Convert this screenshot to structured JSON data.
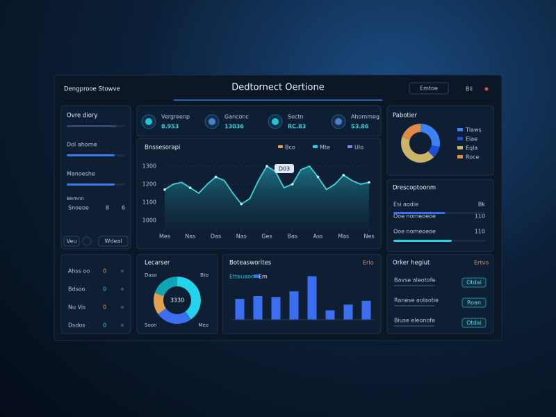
{
  "header": {
    "brand": "Dengprooe Stowve",
    "title": "Dedtornect Oertione",
    "actions": [
      "Emtoe",
      "Bli"
    ]
  },
  "sidebar": {
    "bars": [
      {
        "label": "Ovre diory",
        "value": 85
      },
      {
        "label": "Dol ahorne",
        "value": 82
      },
      {
        "label": "Manoeshe",
        "value": 82
      }
    ],
    "xlim": [
      0,
      100
    ],
    "note": "Bemnn",
    "row": [
      "Snoeoe",
      "8",
      "6"
    ],
    "buttons": [
      "Veu",
      "Wdeal"
    ]
  },
  "kpis": [
    {
      "label": "Vergreenp",
      "value": "8.953"
    },
    {
      "label": "Ganconc",
      "value": "13036"
    },
    {
      "label": "Sectn",
      "value": "RC.83"
    },
    {
      "label": "Ahommeg",
      "value": "S3.86"
    }
  ],
  "line_chart": {
    "type": "line",
    "title": "Bnssesorapi",
    "legend": [
      {
        "name": "Bco",
        "color": "#e0a050"
      },
      {
        "name": "Mte",
        "color": "#22d3ee"
      },
      {
        "name": "Ulo",
        "color": "#8b7cf0"
      }
    ],
    "x": [
      0,
      1,
      2,
      3,
      4,
      5,
      6,
      7,
      8,
      9,
      10,
      11,
      12,
      13,
      14,
      15,
      16,
      17,
      18,
      19,
      20,
      21,
      22,
      23,
      24
    ],
    "values": [
      1170,
      1200,
      1210,
      1180,
      1150,
      1200,
      1240,
      1220,
      1150,
      1090,
      1120,
      1220,
      1300,
      1270,
      1180,
      1200,
      1280,
      1300,
      1240,
      1170,
      1200,
      1250,
      1220,
      1200,
      1210
    ],
    "color": "#3fd6e0",
    "xlim": [
      0,
      24
    ],
    "ylim": [
      950,
      1350
    ],
    "yticks": [
      1000,
      1100,
      1200,
      1300
    ],
    "xticks": [
      {
        "value": 0,
        "label": "Mes"
      },
      {
        "value": 3,
        "label": "Nas"
      },
      {
        "value": 6,
        "label": "Das"
      },
      {
        "value": 9,
        "label": "Nas"
      },
      {
        "value": 12,
        "label": "Ges"
      },
      {
        "value": 15,
        "label": "Bas"
      },
      {
        "value": 18,
        "label": "Ass"
      },
      {
        "value": 21,
        "label": "Mas"
      },
      {
        "value": 24,
        "label": "Nes"
      }
    ],
    "annotation": "D03"
  },
  "donut_top": {
    "type": "pie",
    "title": "Pabotier",
    "series": [
      {
        "name": "Tlaws",
        "color": "#3b82f6",
        "value": 28
      },
      {
        "name": "Eiae",
        "color": "#1e4fd0",
        "value": 10
      },
      {
        "name": "Eqla",
        "color": "#c9b46a",
        "value": 42
      },
      {
        "name": "Roce",
        "color": "#e08a4a",
        "value": 20
      }
    ]
  },
  "progress": {
    "title": "Drescoptoonm",
    "rows": [
      {
        "label": "Esi aodie",
        "end": "Bk"
      },
      {
        "label": "Ooe nomeoeoe",
        "end": "110"
      },
      {
        "label": "Ooe nomeoeoe",
        "end": "110"
      }
    ],
    "values": [
      62,
      70
    ],
    "colors": [
      "#3b6ef0",
      "#22d3ee"
    ],
    "xlim": [
      0,
      100
    ]
  },
  "table": {
    "rows": [
      [
        "Ahss oo",
        "0"
      ],
      [
        "Bdsoo",
        "0"
      ],
      [
        "Nu Vis",
        "0"
      ],
      [
        "Dsdos",
        "0"
      ]
    ]
  },
  "donut_small": {
    "type": "pie",
    "title": "Lecarser",
    "center": "3330",
    "corners": [
      "Daso",
      "Bto",
      "Soon",
      "Meo"
    ],
    "series": [
      {
        "color": "#22d3ee",
        "value": 40
      },
      {
        "color": "#3b6ef0",
        "value": 25
      },
      {
        "color": "#e0a050",
        "value": 15
      },
      {
        "color": "#0ea5b7",
        "value": 20
      }
    ]
  },
  "bar_chart": {
    "type": "bar",
    "title": "Boteasworites",
    "legend": [
      "Etteuaon",
      "Em"
    ],
    "link": "Erlo",
    "values": [
      22,
      25,
      24,
      30,
      46,
      10,
      16,
      20
    ],
    "color": "#3b6ef0",
    "ylim": [
      0,
      50
    ]
  },
  "list": {
    "title": "Orker hegiut",
    "link": "Ertvo",
    "rows": [
      {
        "label": "Bavse aleotofe",
        "button": "Otdai"
      },
      {
        "label": "Ranese aolaotie",
        "button": "Roan"
      },
      {
        "label": "Biuse eleonofe",
        "button": "Otdai"
      }
    ]
  }
}
